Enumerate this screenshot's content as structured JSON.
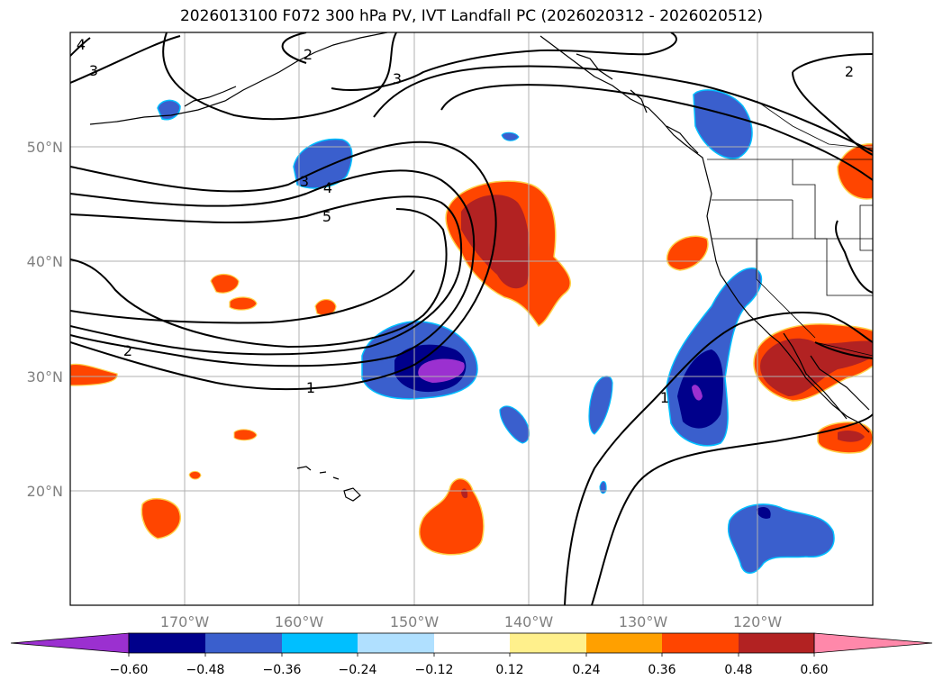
{
  "title": "2026013100 F072 300 hPa PV, IVT Landfall PC (2026020312 - 2026020512)",
  "lat_labels": [
    "50°N",
    "40°N",
    "30°N",
    "20°N"
  ],
  "lon_labels": [
    "170°W",
    "160°W",
    "150°W",
    "140°W",
    "130°W",
    "120°W"
  ],
  "colorbar_ticks": [
    "−0.60",
    "−0.48",
    "−0.36",
    "−0.24",
    "−0.12",
    "0.12",
    "0.24",
    "0.36",
    "0.48",
    "0.60"
  ],
  "colorbar_colors": [
    "#9b30d0",
    "#00008b",
    "#3a5fcd",
    "#00bfff",
    "#b0e0ff",
    "#ffffff",
    "#fff08c",
    "#ffa000",
    "#ff4500",
    "#b22222",
    "#ff88aa"
  ],
  "contour_labels": [
    "1",
    "2",
    "3",
    "4",
    "5",
    "3",
    "2",
    "3",
    "4",
    "1",
    "2",
    "3"
  ],
  "colors": {
    "grid": "#b0b0b0",
    "axis_text": "#808080",
    "coast": "#000000"
  }
}
